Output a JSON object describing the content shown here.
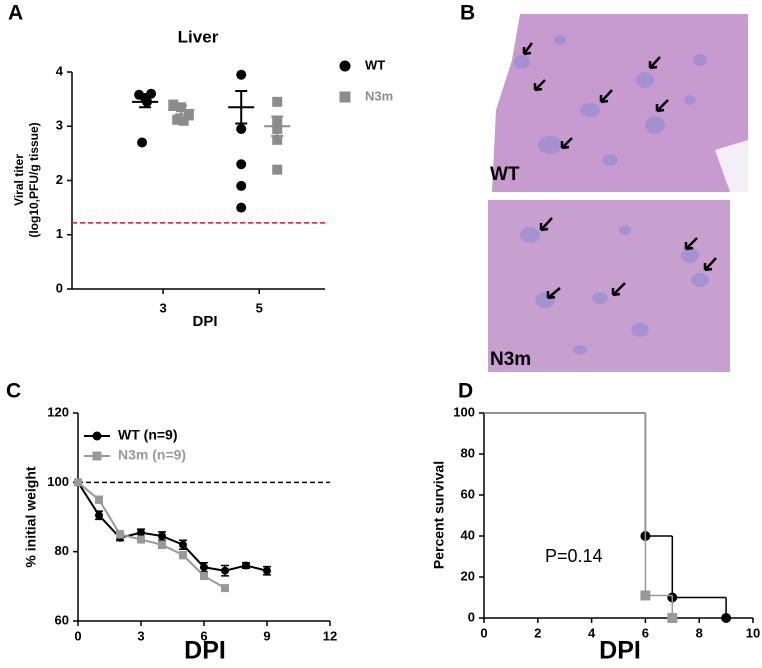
{
  "chart_data": [
    {
      "panel": "A",
      "type": "dot",
      "title": "Liver",
      "categories": [
        "3",
        "5"
      ],
      "x_label": "DPI",
      "y_label": [
        "Viral titer",
        "(log10,PFU/g tissue)"
      ],
      "ylim": [
        0,
        4
      ],
      "yticks": [
        0,
        1,
        2,
        3,
        4
      ],
      "series": [
        {
          "name": "WT",
          "color": "#000000",
          "marker": "circle",
          "values": [
            [
              3.58,
              3.52,
              3.6,
              3.45,
              2.7
            ],
            [
              3.95,
              2.95,
              2.3,
              1.9,
              1.5
            ]
          ],
          "mean": [
            3.45,
            3.35
          ],
          "error": [
            0.1,
            0.3
          ]
        },
        {
          "name": "N3m",
          "color": "#8c8c8c",
          "marker": "square",
          "values": [
            [
              3.4,
              3.35,
              3.2,
              3.1,
              3.12
            ],
            [
              3.45,
              3.1,
              2.95,
              2.75,
              2.2
            ]
          ],
          "mean": [
            3.3,
            3.0
          ],
          "error": [
            0.08,
            0.18
          ]
        }
      ],
      "reference_line": {
        "value": 1.22,
        "color": "#cc2222",
        "dashed": true
      },
      "legend": "right"
    },
    {
      "panel": "C",
      "type": "line",
      "x": [
        0,
        1,
        2,
        3,
        4,
        5,
        6,
        7,
        8,
        9
      ],
      "x_label": "DPI",
      "y_label": "% initial weight",
      "xlim": [
        0,
        12
      ],
      "xticks": [
        0,
        3,
        6,
        9,
        12
      ],
      "ylim": [
        60,
        120
      ],
      "yticks": [
        60,
        80,
        100,
        120
      ],
      "reference_line": {
        "value": 100,
        "color": "#000000",
        "dashed": true
      },
      "legend": "upper left",
      "series": [
        {
          "name": "WT (n=9)",
          "color": "#000000",
          "marker": "circle",
          "values": [
            100,
            90.5,
            84,
            85.5,
            84.5,
            82,
            75.5,
            74.5,
            76,
            74.5
          ],
          "error": [
            0,
            1.2,
            0.8,
            1,
            1.2,
            1.3,
            1.3,
            1.5,
            0.8,
            1.2
          ]
        },
        {
          "name": "N3m (n=9)",
          "color": "#999999",
          "marker": "square",
          "values": [
            100,
            95,
            85,
            83.5,
            82,
            79,
            73,
            69.5,
            null,
            null
          ],
          "error": [
            0,
            1,
            1,
            0.8,
            1,
            1,
            1,
            0.8,
            null,
            null
          ]
        }
      ]
    },
    {
      "panel": "D",
      "type": "survival",
      "x_label": "DPI",
      "y_label": "Percent survival",
      "annotation": "P=0.14",
      "xlim": [
        0,
        10
      ],
      "xticks": [
        0,
        2,
        4,
        6,
        8,
        10
      ],
      "ylim": [
        0,
        100
      ],
      "yticks": [
        0,
        20,
        40,
        60,
        80,
        100
      ],
      "series": [
        {
          "color": "#000000",
          "marker": "circle",
          "x": [
            0,
            6,
            7,
            9
          ],
          "values": [
            100,
            40,
            10,
            0
          ]
        },
        {
          "color": "#999999",
          "marker": "square",
          "x": [
            0,
            6,
            7
          ],
          "values": [
            100,
            11,
            0
          ]
        }
      ]
    }
  ],
  "panel_b": {
    "label": "B",
    "images": [
      {
        "label": "WT"
      },
      {
        "label": "N3m"
      }
    ]
  }
}
